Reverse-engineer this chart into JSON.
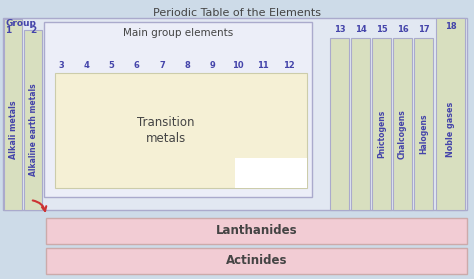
{
  "title": "Periodic Table of the Elements",
  "bg_color": "#cddbe8",
  "main_bg": "#e2e8f2",
  "green_color": "#d8dfbf",
  "cream_color": "#f5f0d5",
  "pink_color": "#f2ccd4",
  "white_color": "#ffffff",
  "border_color": "#aaaacc",
  "text_color": "#4444aa",
  "dark_text": "#444444",
  "title_color": "#444444",
  "group_numbers_mid": [
    "3",
    "4",
    "5",
    "6",
    "7",
    "8",
    "9",
    "10",
    "11",
    "12"
  ],
  "group_numbers_right": [
    "13",
    "14",
    "15",
    "16",
    "17"
  ],
  "col1_label": "Alkali metals",
  "col2_label": "Alkaline earth metals",
  "col3_label": "Transition\nmetals",
  "col15_label": "Pnictogens",
  "col16_label": "Chalcogens",
  "col17_label": "Halogens",
  "col18_label": "Noble gases",
  "main_group_label": "Main group elements",
  "lanthanides_label": "Lanthanides",
  "actinides_label": "Actinides"
}
